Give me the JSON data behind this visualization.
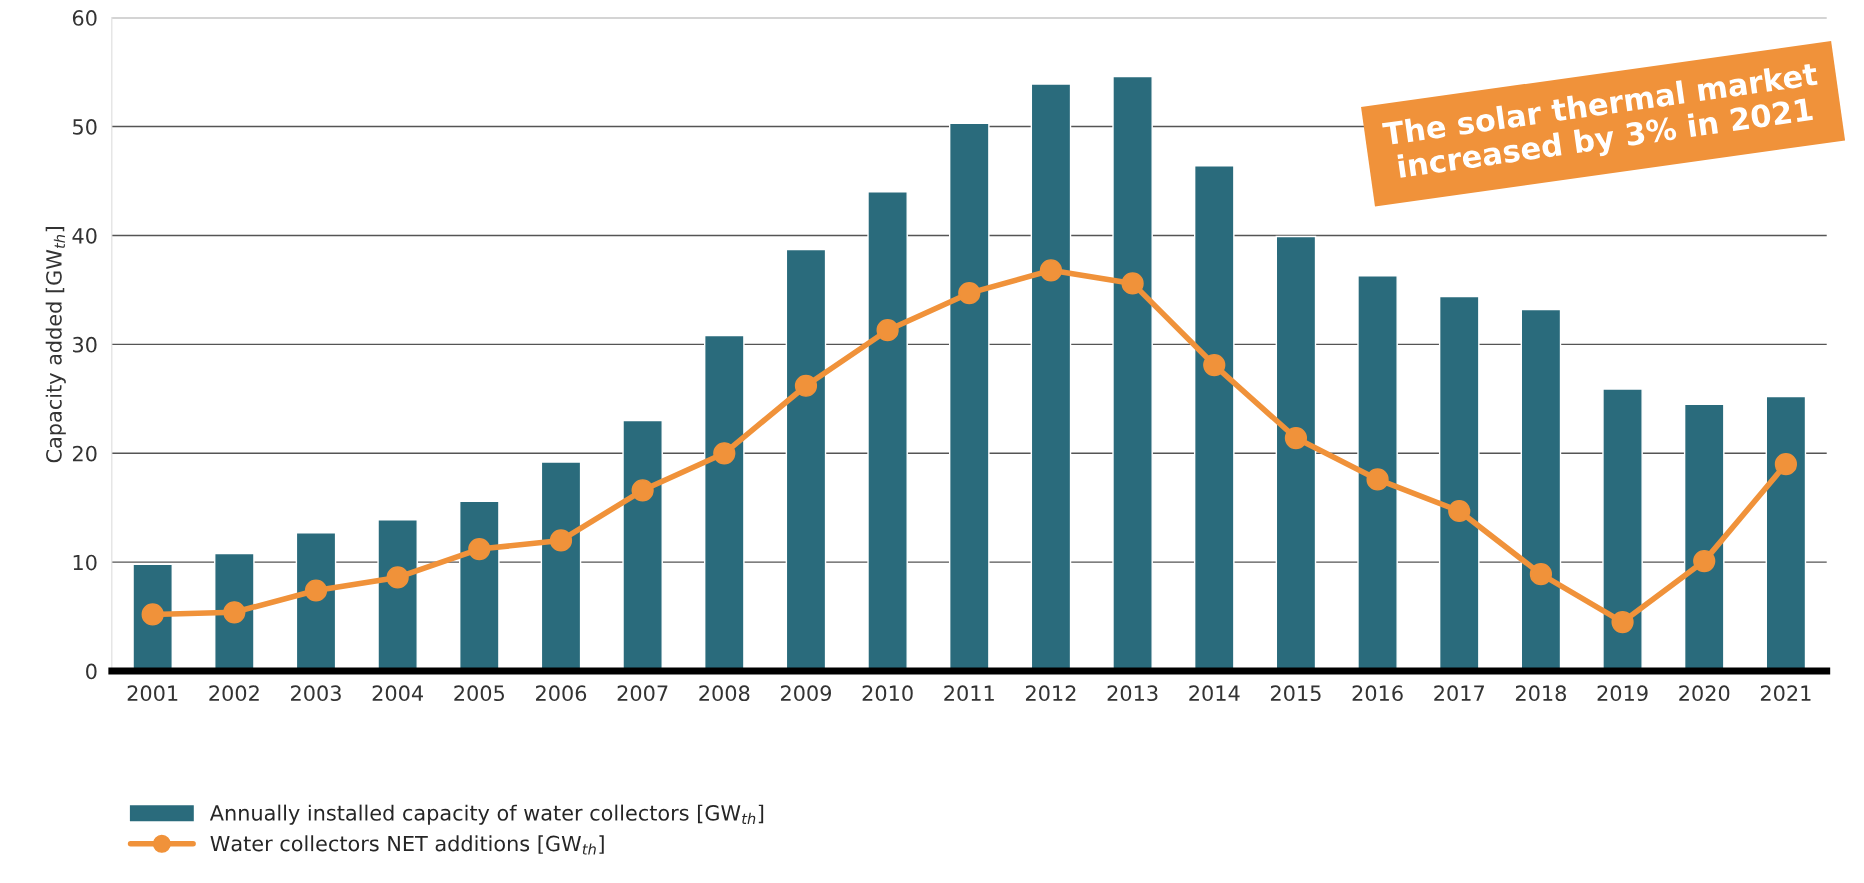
{
  "chart_data": {
    "type": "bar",
    "categories": [
      "2001",
      "2002",
      "2003",
      "2004",
      "2005",
      "2006",
      "2007",
      "2008",
      "2009",
      "2010",
      "2011",
      "2012",
      "2013",
      "2014",
      "2015",
      "2016",
      "2017",
      "2018",
      "2019",
      "2020",
      "2021"
    ],
    "series": [
      {
        "name": "Annually installed capacity of water collectors [GW$_{th}$]",
        "color": "#2a6b7c",
        "values": [
          9.8,
          10.8,
          12.7,
          13.9,
          15.6,
          19.2,
          23.0,
          30.8,
          38.7,
          44.0,
          50.3,
          53.9,
          54.6,
          46.4,
          39.9,
          36.3,
          34.4,
          33.2,
          25.9,
          24.5,
          25.2
        ]
      },
      {
        "name": "Water collectors NET additions [GW$_{th}$]",
        "type": "line",
        "color": "#f0923a",
        "marker": "circle",
        "values": [
          5.2,
          5.4,
          7.4,
          8.6,
          11.2,
          12.0,
          16.6,
          20.0,
          26.2,
          31.3,
          34.7,
          36.8,
          35.6,
          28.1,
          21.4,
          17.6,
          14.7,
          8.9,
          4.5,
          10.1,
          19.0
        ]
      }
    ],
    "ylabel": "Capacity added [GW$_{th}$]",
    "ylim": [
      0,
      60
    ],
    "yticks": [
      0,
      10,
      20,
      30,
      40,
      50,
      60
    ],
    "grid": "y",
    "legend": "bottom left",
    "annotations": [
      "The solar thermal market increased by 3% in 2021"
    ]
  }
}
